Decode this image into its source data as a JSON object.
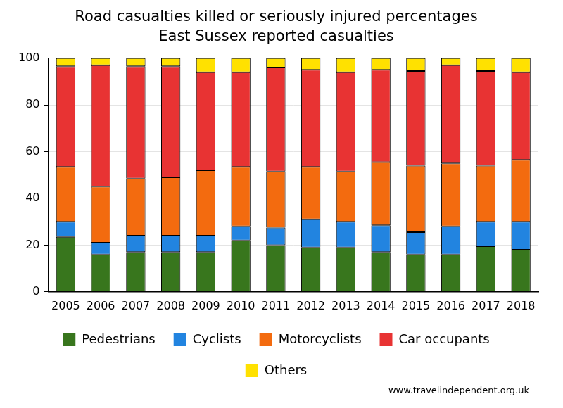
{
  "chart_data": {
    "type": "bar",
    "title": "Road casualties killed or seriously injured percentages",
    "subtitle": "East Sussex reported casualties",
    "annotation": "www.travelindependent.org.uk",
    "categories": [
      "2005",
      "2006",
      "2007",
      "2008",
      "2009",
      "2010",
      "2011",
      "2012",
      "2013",
      "2014",
      "2015",
      "2016",
      "2017",
      "2018"
    ],
    "series": [
      {
        "name": "Pedestrians",
        "color": "#38761d",
        "values": [
          23.5,
          16,
          17,
          17,
          17,
          22,
          20,
          19,
          19,
          17,
          16,
          16,
          19.5,
          18
        ]
      },
      {
        "name": "Cyclists",
        "color": "#2284e0",
        "values": [
          6.5,
          5,
          7,
          7,
          7,
          6,
          7.5,
          12,
          11,
          11.5,
          9.5,
          12,
          10.5,
          12
        ]
      },
      {
        "name": "Motorcyclists",
        "color": "#f36b0f",
        "values": [
          23.5,
          24,
          24.5,
          25,
          28,
          25.5,
          24,
          22.5,
          21.5,
          27,
          28.5,
          27,
          24,
          26.5
        ]
      },
      {
        "name": "Car occupants",
        "color": "#e83333",
        "values": [
          43,
          52,
          48,
          47.5,
          42,
          40.5,
          44.5,
          41.5,
          42.5,
          39.5,
          40.5,
          42,
          40.5,
          37.5
        ]
      },
      {
        "name": "Others",
        "color": "#ffe100",
        "values": [
          3.5,
          3,
          3.5,
          3.5,
          6,
          6,
          4,
          5,
          6,
          5,
          5.5,
          3,
          5.5,
          6
        ]
      }
    ],
    "stacked": true,
    "ylim": [
      0,
      100
    ],
    "yticks": [
      0,
      20,
      40,
      60,
      80,
      100
    ],
    "grid": true,
    "legend": "bottom"
  }
}
